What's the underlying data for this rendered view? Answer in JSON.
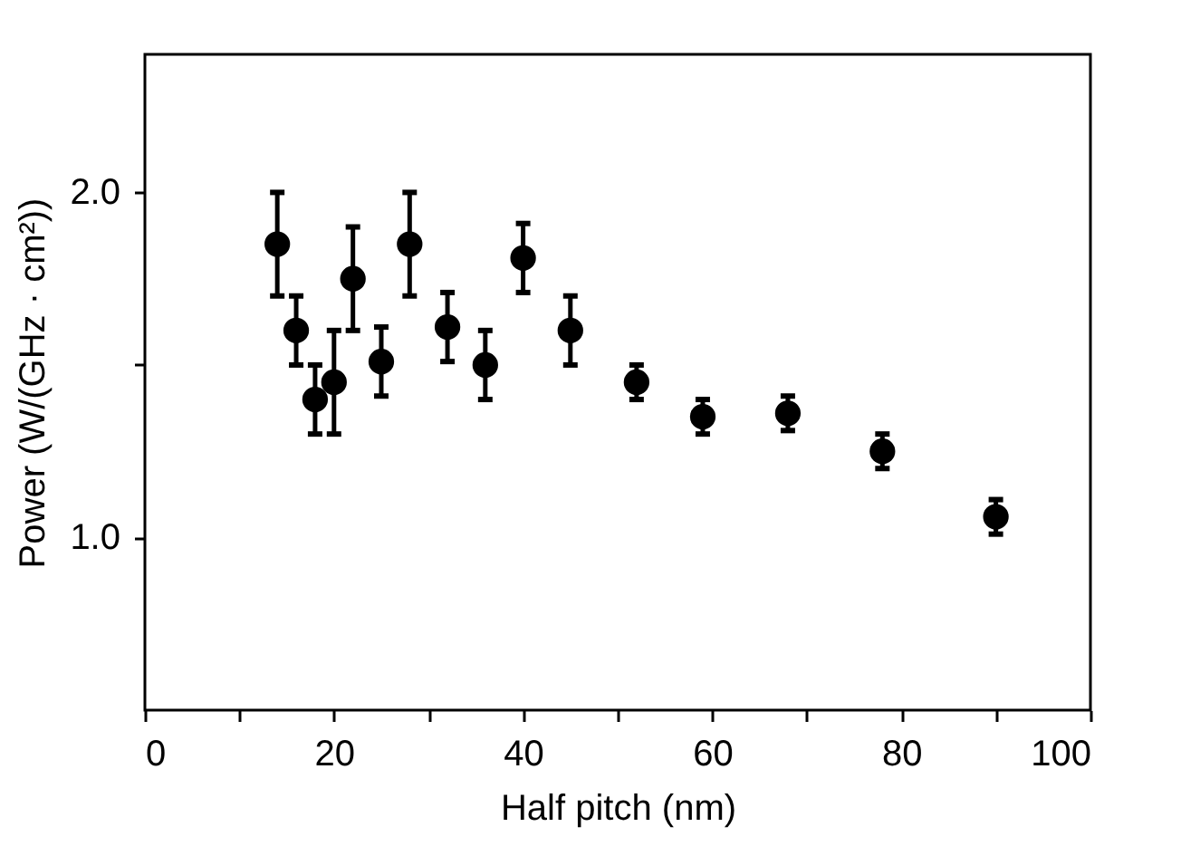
{
  "chart_data": {
    "type": "scatter",
    "xlabel": "Half pitch (nm)",
    "ylabel": "Power (W/(GHz · cm²))",
    "x": [
      14,
      16,
      18,
      20,
      22,
      25,
      28,
      32,
      36,
      40,
      45,
      52,
      59,
      68,
      78,
      90
    ],
    "values": [
      1.85,
      1.6,
      1.4,
      1.45,
      1.75,
      1.51,
      1.85,
      1.61,
      1.5,
      1.81,
      1.6,
      1.45,
      1.35,
      1.36,
      1.25,
      1.06
    ],
    "errors": [
      0.15,
      0.1,
      0.1,
      0.15,
      0.15,
      0.1,
      0.15,
      0.1,
      0.1,
      0.1,
      0.1,
      0.05,
      0.05,
      0.05,
      0.05,
      0.05
    ],
    "color": "#000000",
    "marker": "circle",
    "xlim": [
      0,
      100
    ],
    "xticks": [
      0,
      {
        "value": 10,
        "label": null
      },
      20,
      {
        "value": 30,
        "label": null
      },
      40,
      {
        "value": 50,
        "label": null
      },
      60,
      {
        "value": 70,
        "label": null
      },
      80,
      {
        "value": 90,
        "label": null
      },
      100
    ],
    "ylim": [
      0.5,
      2.4
    ],
    "yticks": [
      {
        "value": 1,
        "label": "1.0"
      },
      {
        "value": 1.5,
        "label": null
      },
      {
        "value": 2,
        "label": "2.0"
      }
    ],
    "grid": false
  }
}
